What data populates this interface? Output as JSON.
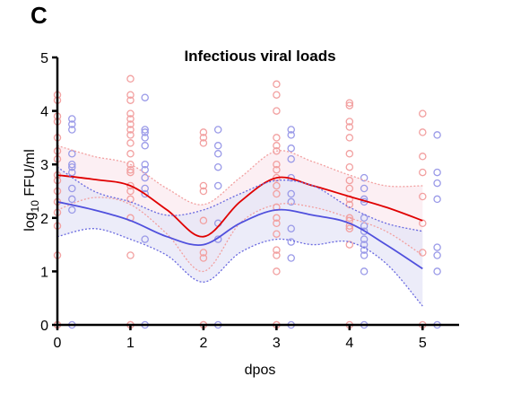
{
  "panel_label": "C",
  "chart_data": {
    "type": "scatter",
    "title": "Infectious viral loads",
    "xlabel": "dpos",
    "ylabel_prefix": "log",
    "ylabel_subscript": "10",
    "ylabel_suffix": " FFU/ml",
    "xlim": [
      0,
      5.5
    ],
    "ylim": [
      0,
      5
    ],
    "xticks": [
      0,
      1,
      2,
      3,
      4,
      5
    ],
    "yticks": [
      0,
      1,
      2,
      3,
      4,
      5
    ],
    "grid": false,
    "legend": "none",
    "series": [
      {
        "color": "#f2a0a0",
        "marker": "open-circle",
        "x_offset": 0,
        "points": [
          [
            0,
            4.3
          ],
          [
            0,
            4.2
          ],
          [
            0,
            3.9
          ],
          [
            0,
            3.8
          ],
          [
            0,
            3.5
          ],
          [
            0,
            3.25
          ],
          [
            0,
            3.1
          ],
          [
            0,
            2.8
          ],
          [
            0,
            2.7
          ],
          [
            0,
            2.5
          ],
          [
            0,
            2.3
          ],
          [
            0,
            2.1
          ],
          [
            0,
            1.85
          ],
          [
            0,
            1.3
          ],
          [
            0,
            0
          ],
          [
            0,
            0
          ],
          [
            1,
            4.6
          ],
          [
            1,
            4.3
          ],
          [
            1,
            4.2
          ],
          [
            1,
            3.95
          ],
          [
            1,
            3.85
          ],
          [
            1,
            3.75
          ],
          [
            1,
            3.65
          ],
          [
            1,
            3.55
          ],
          [
            1,
            3.4
          ],
          [
            1,
            3.2
          ],
          [
            1,
            3.0
          ],
          [
            1,
            2.9
          ],
          [
            1,
            2.85
          ],
          [
            1,
            2.6
          ],
          [
            1,
            2.5
          ],
          [
            1,
            2.35
          ],
          [
            1,
            2.0
          ],
          [
            1,
            1.3
          ],
          [
            1,
            0
          ],
          [
            1,
            0
          ],
          [
            2,
            3.6
          ],
          [
            2,
            3.5
          ],
          [
            2,
            3.4
          ],
          [
            2,
            2.6
          ],
          [
            2,
            2.5
          ],
          [
            2,
            1.95
          ],
          [
            2,
            1.35
          ],
          [
            2,
            1.25
          ],
          [
            2,
            0
          ],
          [
            2,
            0
          ],
          [
            3,
            4.5
          ],
          [
            3,
            4.3
          ],
          [
            3,
            4.0
          ],
          [
            3,
            3.5
          ],
          [
            3,
            3.35
          ],
          [
            3,
            3.25
          ],
          [
            3,
            3.0
          ],
          [
            3,
            2.9
          ],
          [
            3,
            2.75
          ],
          [
            3,
            2.6
          ],
          [
            3,
            2.45
          ],
          [
            3,
            2.2
          ],
          [
            3,
            2.0
          ],
          [
            3,
            1.9
          ],
          [
            3,
            1.7
          ],
          [
            3,
            1.4
          ],
          [
            3,
            1.3
          ],
          [
            3,
            1.0
          ],
          [
            3,
            0
          ],
          [
            3,
            0
          ],
          [
            4,
            4.15
          ],
          [
            4,
            4.1
          ],
          [
            4,
            3.8
          ],
          [
            4,
            3.7
          ],
          [
            4,
            3.5
          ],
          [
            4,
            3.2
          ],
          [
            4,
            2.95
          ],
          [
            4,
            2.7
          ],
          [
            4,
            2.55
          ],
          [
            4,
            2.35
          ],
          [
            4,
            2.25
          ],
          [
            4,
            2.0
          ],
          [
            4,
            1.95
          ],
          [
            4,
            1.85
          ],
          [
            4,
            1.8
          ],
          [
            4,
            1.5
          ],
          [
            4,
            0
          ],
          [
            5,
            3.95
          ],
          [
            5,
            3.6
          ],
          [
            5,
            3.15
          ],
          [
            5,
            2.85
          ],
          [
            5,
            2.4
          ],
          [
            5,
            1.9
          ],
          [
            5,
            1.35
          ],
          [
            5,
            0
          ]
        ]
      },
      {
        "color": "#9a9ae8",
        "marker": "open-circle",
        "x_offset": 0.2,
        "points": [
          [
            0,
            3.85
          ],
          [
            0,
            3.75
          ],
          [
            0,
            3.65
          ],
          [
            0,
            3.2
          ],
          [
            0,
            3.0
          ],
          [
            0,
            2.95
          ],
          [
            0,
            2.85
          ],
          [
            0,
            2.55
          ],
          [
            0,
            2.35
          ],
          [
            0,
            2.15
          ],
          [
            0,
            0
          ],
          [
            1,
            4.25
          ],
          [
            1,
            3.65
          ],
          [
            1,
            3.6
          ],
          [
            1,
            3.5
          ],
          [
            1,
            3.35
          ],
          [
            1,
            3.0
          ],
          [
            1,
            2.9
          ],
          [
            1,
            2.75
          ],
          [
            1,
            2.55
          ],
          [
            1,
            2.45
          ],
          [
            1,
            1.6
          ],
          [
            1,
            0
          ],
          [
            2,
            3.65
          ],
          [
            2,
            3.35
          ],
          [
            2,
            3.2
          ],
          [
            2,
            2.95
          ],
          [
            2,
            2.6
          ],
          [
            2,
            1.9
          ],
          [
            2,
            1.6
          ],
          [
            2,
            0
          ],
          [
            3,
            3.65
          ],
          [
            3,
            3.55
          ],
          [
            3,
            3.3
          ],
          [
            3,
            3.1
          ],
          [
            3,
            2.75
          ],
          [
            3,
            2.45
          ],
          [
            3,
            2.3
          ],
          [
            3,
            1.8
          ],
          [
            3,
            1.55
          ],
          [
            3,
            1.25
          ],
          [
            3,
            0
          ],
          [
            4,
            2.75
          ],
          [
            4,
            2.55
          ],
          [
            4,
            2.35
          ],
          [
            4,
            2.3
          ],
          [
            4,
            2.0
          ],
          [
            4,
            1.85
          ],
          [
            4,
            1.75
          ],
          [
            4,
            1.6
          ],
          [
            4,
            1.5
          ],
          [
            4,
            1.4
          ],
          [
            4,
            1.3
          ],
          [
            4,
            1.0
          ],
          [
            4,
            0
          ],
          [
            5,
            3.55
          ],
          [
            5,
            2.85
          ],
          [
            5,
            2.65
          ],
          [
            5,
            2.35
          ],
          [
            5,
            1.45
          ],
          [
            5,
            1.3
          ],
          [
            5,
            1.0
          ],
          [
            5,
            0
          ]
        ]
      }
    ],
    "fits": [
      {
        "color": "#e00000",
        "band_color": "#f2a0a0",
        "band_fill": "#fbe9ef",
        "x": [
          0,
          0.5,
          1,
          1.5,
          2,
          2.5,
          3,
          3.5,
          4,
          4.5,
          5
        ],
        "y": [
          2.8,
          2.72,
          2.6,
          2.15,
          1.65,
          2.3,
          2.75,
          2.6,
          2.4,
          2.2,
          1.95
        ],
        "upper": [
          3.35,
          3.15,
          3.0,
          2.55,
          2.25,
          2.75,
          3.25,
          3.05,
          2.8,
          2.6,
          2.6
        ],
        "lower": [
          2.15,
          2.38,
          2.25,
          1.7,
          1.0,
          1.9,
          2.25,
          2.2,
          2.0,
          1.75,
          1.3
        ]
      },
      {
        "color": "#5050dd",
        "band_color": "#6a6ae0",
        "band_fill": "#e6e6f7",
        "x": [
          0,
          0.5,
          1,
          1.5,
          2,
          2.5,
          3,
          3.5,
          4,
          4.5,
          5
        ],
        "y": [
          2.3,
          2.15,
          1.95,
          1.65,
          1.5,
          1.9,
          2.15,
          2.05,
          1.9,
          1.5,
          1.05
        ],
        "upper": [
          2.95,
          2.5,
          2.3,
          2.05,
          2.15,
          2.45,
          2.7,
          2.6,
          2.2,
          1.9,
          1.75
        ],
        "lower": [
          1.65,
          1.8,
          1.6,
          1.3,
          0.8,
          1.35,
          1.6,
          1.5,
          1.55,
          1.15,
          0.35
        ]
      }
    ]
  }
}
